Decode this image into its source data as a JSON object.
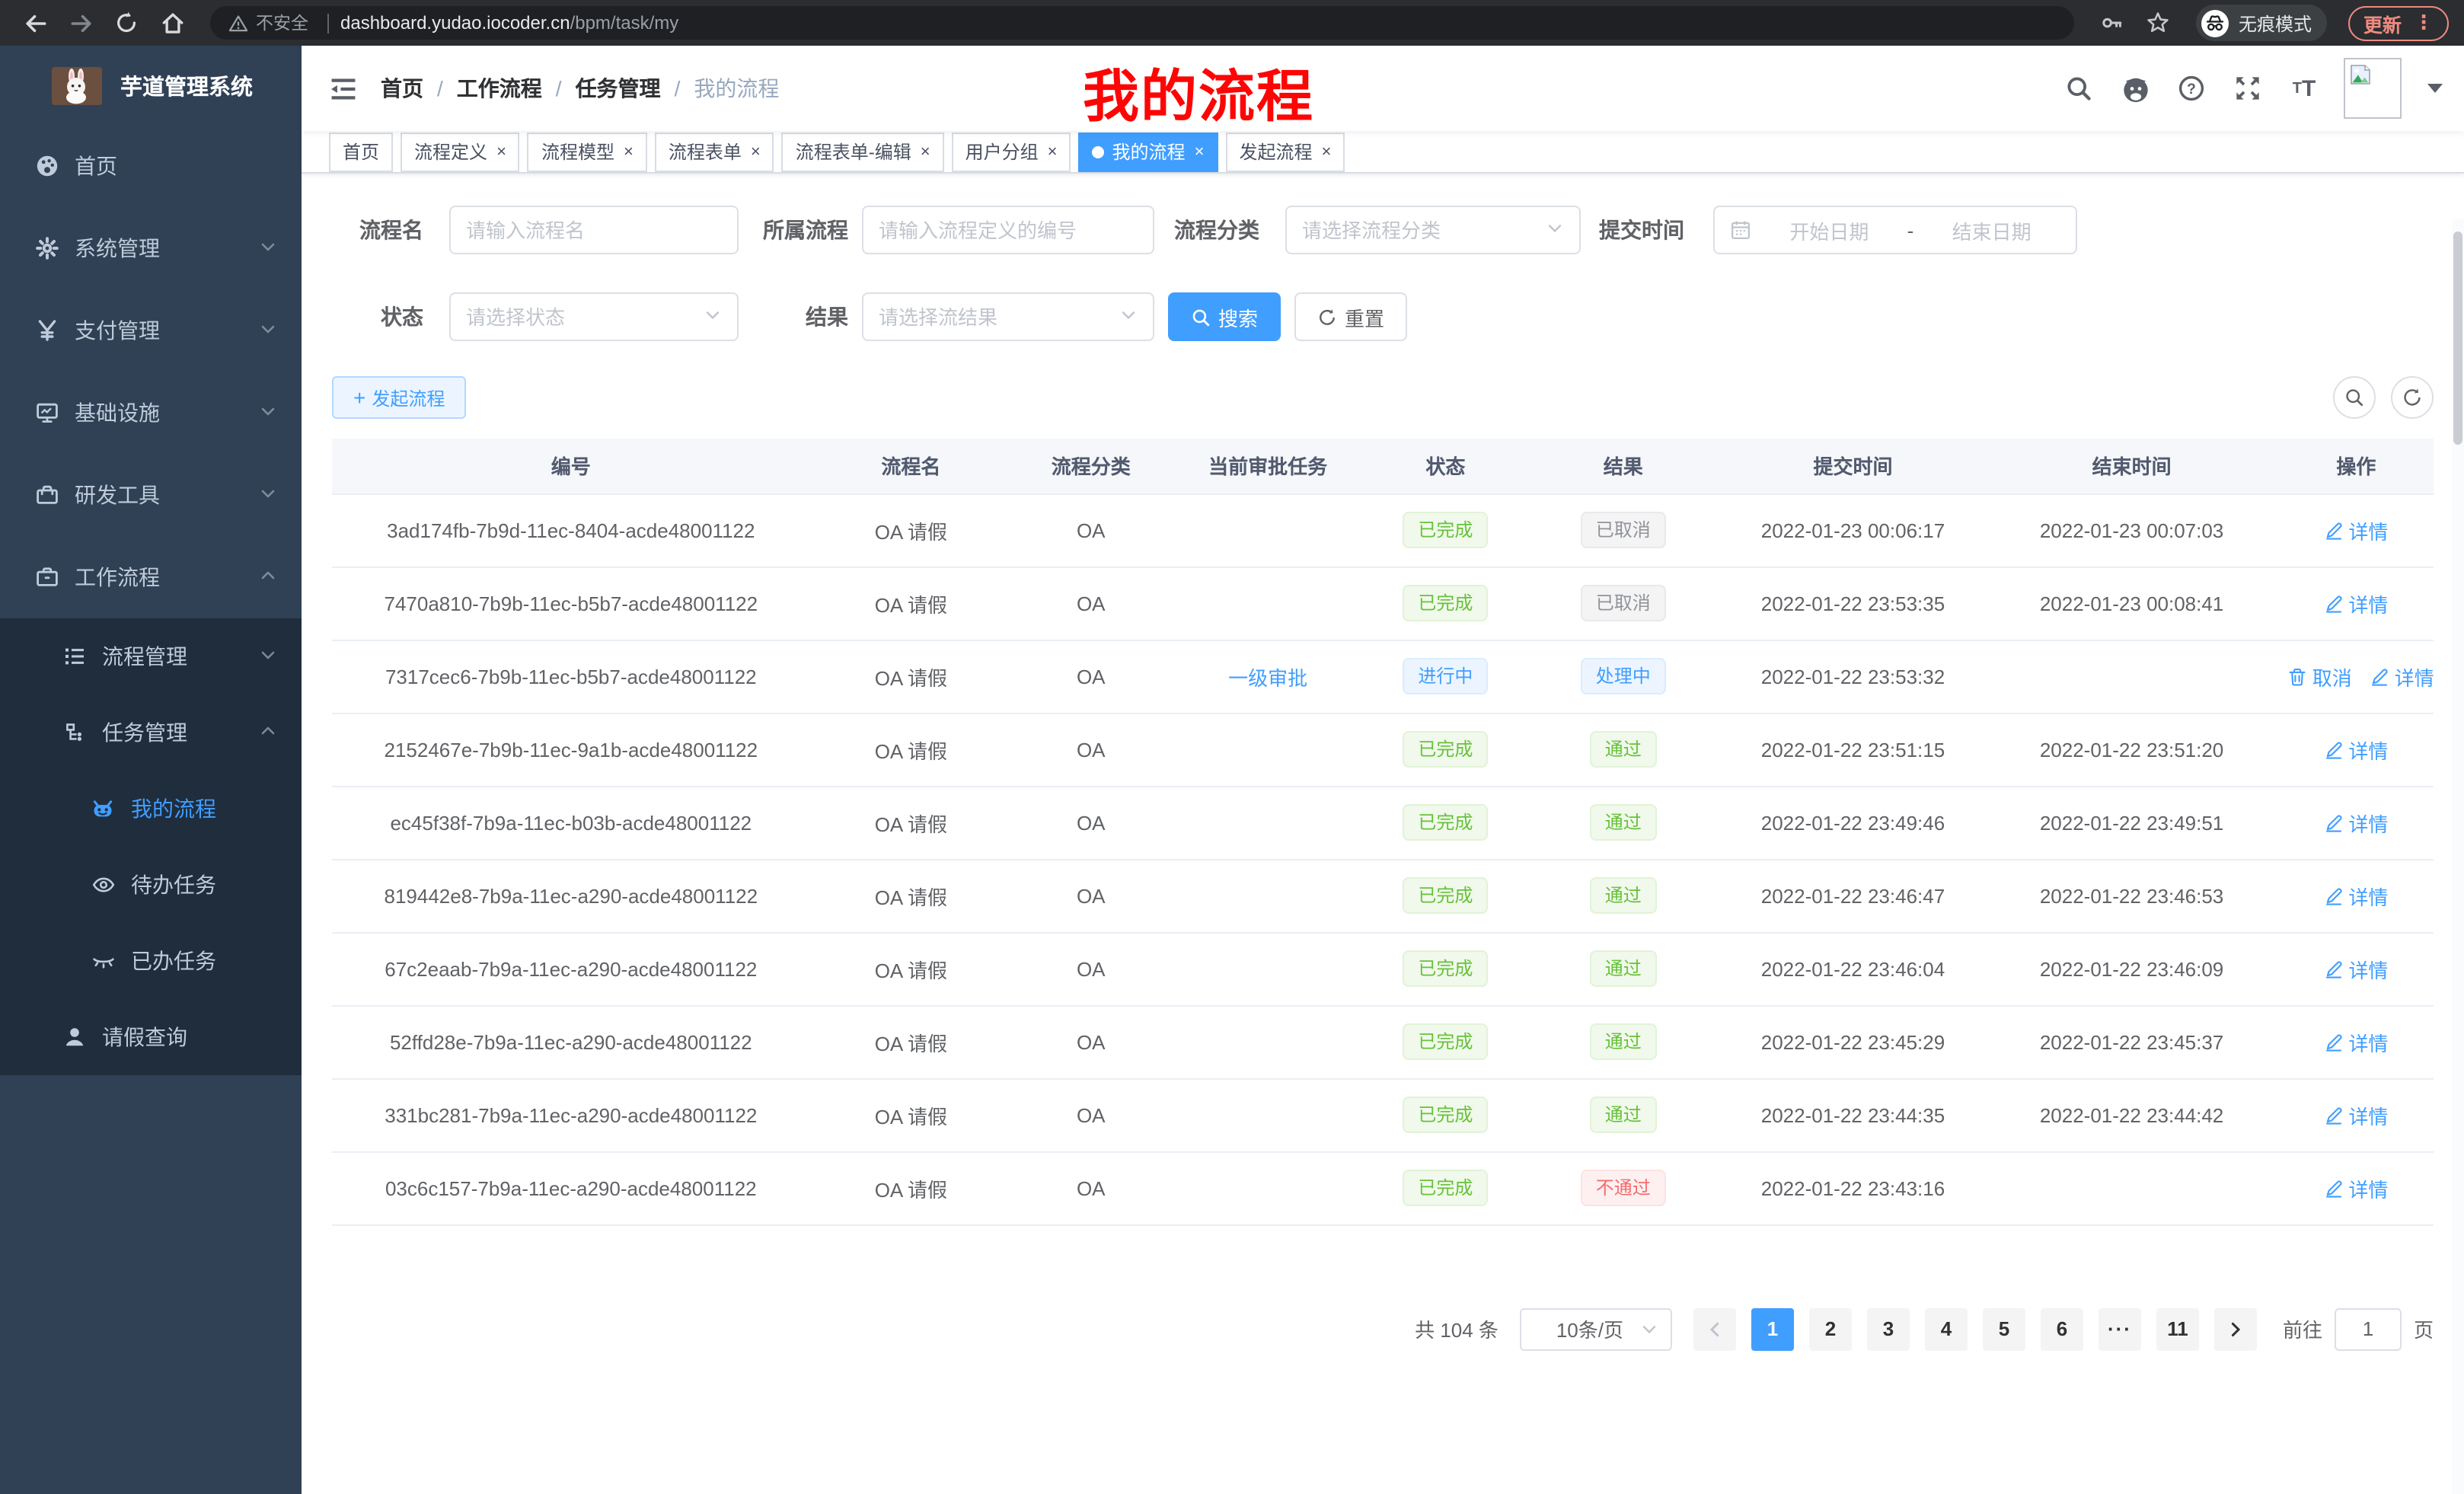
{
  "browser": {
    "security_label": "不安全",
    "url_domain": "dashboard.yudao.iocoder.cn",
    "url_path": "/bpm/task/my",
    "incognito_label": "无痕模式",
    "update_label": "更新"
  },
  "sidebar": {
    "title": "芋道管理系统",
    "items": [
      {
        "label": "首页",
        "icon": "dashboard-icon"
      },
      {
        "label": "系统管理",
        "icon": "gear-icon"
      },
      {
        "label": "支付管理",
        "icon": "yen-icon"
      },
      {
        "label": "基础设施",
        "icon": "monitor-icon"
      },
      {
        "label": "研发工具",
        "icon": "toolbox-icon"
      },
      {
        "label": "工作流程",
        "icon": "briefcase-icon"
      },
      {
        "label": "流程管理",
        "icon": "list-icon"
      },
      {
        "label": "任务管理",
        "icon": "tree-icon"
      },
      {
        "label": "我的流程",
        "icon": "robot-icon"
      },
      {
        "label": "待办任务",
        "icon": "eye-icon"
      },
      {
        "label": "已办任务",
        "icon": "eye-closed-icon"
      },
      {
        "label": "请假查询",
        "icon": "user-icon"
      }
    ]
  },
  "header": {
    "breadcrumb": [
      "首页",
      "工作流程",
      "任务管理",
      "我的流程"
    ],
    "separator": "/",
    "annotation": "我的流程"
  },
  "tabs": [
    {
      "label": "首页",
      "closable": false,
      "active": false
    },
    {
      "label": "流程定义",
      "closable": true,
      "active": false
    },
    {
      "label": "流程模型",
      "closable": true,
      "active": false
    },
    {
      "label": "流程表单",
      "closable": true,
      "active": false
    },
    {
      "label": "流程表单-编辑",
      "closable": true,
      "active": false
    },
    {
      "label": "用户分组",
      "closable": true,
      "active": false
    },
    {
      "label": "我的流程",
      "closable": true,
      "active": true
    },
    {
      "label": "发起流程",
      "closable": true,
      "active": false
    }
  ],
  "filters": {
    "name": {
      "label": "流程名",
      "placeholder": "请输入流程名"
    },
    "definition": {
      "label": "所属流程",
      "placeholder": "请输入流程定义的编号"
    },
    "category": {
      "label": "流程分类",
      "placeholder": "请选择流程分类"
    },
    "submit_time": {
      "label": "提交时间",
      "start_placeholder": "开始日期",
      "separator": "-",
      "end_placeholder": "结束日期"
    },
    "status": {
      "label": "状态",
      "placeholder": "请选择状态"
    },
    "result": {
      "label": "结果",
      "placeholder": "请选择流结果"
    },
    "search_label": "搜索",
    "reset_label": "重置"
  },
  "toolbar": {
    "create_label": "发起流程"
  },
  "table": {
    "columns": [
      "编号",
      "流程名",
      "流程分类",
      "当前审批任务",
      "状态",
      "结果",
      "提交时间",
      "结束时间",
      "操作"
    ],
    "rows": [
      {
        "id": "3ad174fb-7b9d-11ec-8404-acde48001122",
        "name": "OA 请假",
        "category": "OA",
        "task": "",
        "status": {
          "label": "已完成",
          "type": "success"
        },
        "result": {
          "label": "已取消",
          "type": "info"
        },
        "submit_time": "2022-01-23 00:06:17",
        "end_time": "2022-01-23 00:07:03",
        "actions": [
          {
            "icon": "edit",
            "label": "详情",
            "name": "detail-link"
          }
        ]
      },
      {
        "id": "7470a810-7b9b-11ec-b5b7-acde48001122",
        "name": "OA 请假",
        "category": "OA",
        "task": "",
        "status": {
          "label": "已完成",
          "type": "success"
        },
        "result": {
          "label": "已取消",
          "type": "info"
        },
        "submit_time": "2022-01-22 23:53:35",
        "end_time": "2022-01-23 00:08:41",
        "actions": [
          {
            "icon": "edit",
            "label": "详情",
            "name": "detail-link"
          }
        ]
      },
      {
        "id": "7317cec6-7b9b-11ec-b5b7-acde48001122",
        "name": "OA 请假",
        "category": "OA",
        "task": "一级审批",
        "status": {
          "label": "进行中",
          "type": "primary"
        },
        "result": {
          "label": "处理中",
          "type": "primary"
        },
        "submit_time": "2022-01-22 23:53:32",
        "end_time": "",
        "actions": [
          {
            "icon": "trash",
            "label": "取消",
            "name": "cancel-link"
          },
          {
            "icon": "edit",
            "label": "详情",
            "name": "detail-link"
          }
        ]
      },
      {
        "id": "2152467e-7b9b-11ec-9a1b-acde48001122",
        "name": "OA 请假",
        "category": "OA",
        "task": "",
        "status": {
          "label": "已完成",
          "type": "success"
        },
        "result": {
          "label": "通过",
          "type": "success"
        },
        "submit_time": "2022-01-22 23:51:15",
        "end_time": "2022-01-22 23:51:20",
        "actions": [
          {
            "icon": "edit",
            "label": "详情",
            "name": "detail-link"
          }
        ]
      },
      {
        "id": "ec45f38f-7b9a-11ec-b03b-acde48001122",
        "name": "OA 请假",
        "category": "OA",
        "task": "",
        "status": {
          "label": "已完成",
          "type": "success"
        },
        "result": {
          "label": "通过",
          "type": "success"
        },
        "submit_time": "2022-01-22 23:49:46",
        "end_time": "2022-01-22 23:49:51",
        "actions": [
          {
            "icon": "edit",
            "label": "详情",
            "name": "detail-link"
          }
        ]
      },
      {
        "id": "819442e8-7b9a-11ec-a290-acde48001122",
        "name": "OA 请假",
        "category": "OA",
        "task": "",
        "status": {
          "label": "已完成",
          "type": "success"
        },
        "result": {
          "label": "通过",
          "type": "success"
        },
        "submit_time": "2022-01-22 23:46:47",
        "end_time": "2022-01-22 23:46:53",
        "actions": [
          {
            "icon": "edit",
            "label": "详情",
            "name": "detail-link"
          }
        ]
      },
      {
        "id": "67c2eaab-7b9a-11ec-a290-acde48001122",
        "name": "OA 请假",
        "category": "OA",
        "task": "",
        "status": {
          "label": "已完成",
          "type": "success"
        },
        "result": {
          "label": "通过",
          "type": "success"
        },
        "submit_time": "2022-01-22 23:46:04",
        "end_time": "2022-01-22 23:46:09",
        "actions": [
          {
            "icon": "edit",
            "label": "详情",
            "name": "detail-link"
          }
        ]
      },
      {
        "id": "52ffd28e-7b9a-11ec-a290-acde48001122",
        "name": "OA 请假",
        "category": "OA",
        "task": "",
        "status": {
          "label": "已完成",
          "type": "success"
        },
        "result": {
          "label": "通过",
          "type": "success"
        },
        "submit_time": "2022-01-22 23:45:29",
        "end_time": "2022-01-22 23:45:37",
        "actions": [
          {
            "icon": "edit",
            "label": "详情",
            "name": "detail-link"
          }
        ]
      },
      {
        "id": "331bc281-7b9a-11ec-a290-acde48001122",
        "name": "OA 请假",
        "category": "OA",
        "task": "",
        "status": {
          "label": "已完成",
          "type": "success"
        },
        "result": {
          "label": "通过",
          "type": "success"
        },
        "submit_time": "2022-01-22 23:44:35",
        "end_time": "2022-01-22 23:44:42",
        "actions": [
          {
            "icon": "edit",
            "label": "详情",
            "name": "detail-link"
          }
        ]
      },
      {
        "id": "03c6c157-7b9a-11ec-a290-acde48001122",
        "name": "OA 请假",
        "category": "OA",
        "task": "",
        "status": {
          "label": "已完成",
          "type": "success"
        },
        "result": {
          "label": "不通过",
          "type": "danger"
        },
        "submit_time": "2022-01-22 23:43:16",
        "end_time": "",
        "actions": [
          {
            "icon": "edit",
            "label": "详情",
            "name": "detail-link"
          }
        ]
      }
    ]
  },
  "pagination": {
    "total": "共 104 条",
    "page_size": "10条/页",
    "pages": [
      "1",
      "2",
      "3",
      "4",
      "5",
      "6",
      "···",
      "11"
    ],
    "active_page": "1",
    "goto_label": "前往",
    "goto_value": "1",
    "unit_label": "页"
  }
}
